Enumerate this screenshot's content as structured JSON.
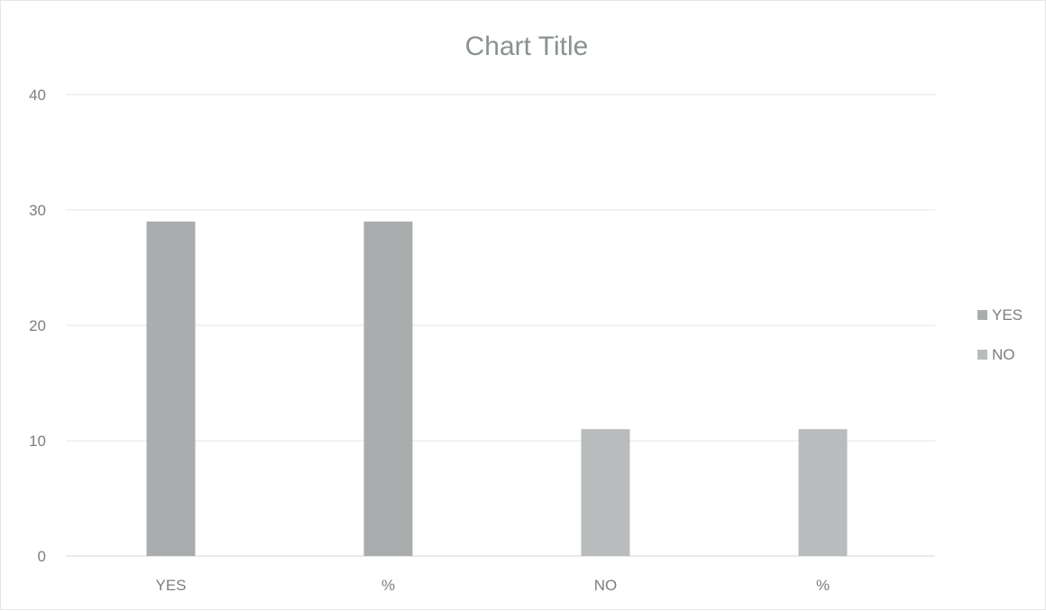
{
  "chart_data": {
    "type": "bar",
    "title": "Chart Title",
    "categories": [
      "YES",
      "%",
      "NO",
      "%"
    ],
    "values": [
      29,
      29,
      11,
      11
    ],
    "ylim": [
      0,
      40
    ],
    "yticks": [
      0,
      10,
      20,
      30,
      40
    ],
    "grid": true,
    "legend": {
      "placement": "right",
      "entries": [
        {
          "label": "YES",
          "color": "#a9adad"
        },
        {
          "label": "NO",
          "color": "#b8bcbc"
        }
      ]
    },
    "bar_colors": [
      "#a9adad",
      "#a9adad",
      "#b8bcbc",
      "#b8bcbc"
    ]
  }
}
